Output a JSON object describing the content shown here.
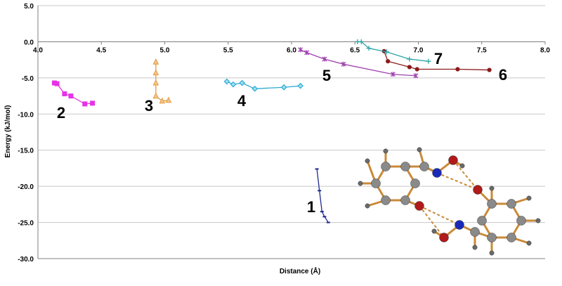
{
  "chart_data": {
    "type": "scatter",
    "title": "",
    "xlabel": "Distance (Å)",
    "ylabel": "Energy (kJ/mol)",
    "xlim": [
      4.0,
      8.0
    ],
    "ylim": [
      -30.0,
      5.0
    ],
    "x_ticks": [
      "4.0",
      "4.5",
      "5.0",
      "5.5",
      "6.0",
      "6.5",
      "7.0",
      "7.5",
      "8.0"
    ],
    "y_ticks": [
      "5.0",
      "0.0",
      "-5.0",
      "-10.0",
      "-15.0",
      "-20.0",
      "-25.0",
      "-30.0"
    ],
    "grid": "horizontal major only",
    "legend": "none",
    "series": [
      {
        "name": "1",
        "color": "#1f2a8f",
        "marker": "dash",
        "x": [
          6.2,
          6.22,
          6.24,
          6.26,
          6.29
        ],
        "y": [
          -17.6,
          -20.6,
          -23.5,
          -24.2,
          -25.0
        ]
      },
      {
        "name": "2",
        "color": "#e633e6",
        "marker": "square",
        "x": [
          4.13,
          4.15,
          4.21,
          4.26,
          4.37,
          4.43
        ],
        "y": [
          -5.7,
          -5.8,
          -7.2,
          -7.5,
          -8.6,
          -8.5
        ]
      },
      {
        "name": "3",
        "color": "#e69a3c",
        "marker": "triangle",
        "x": [
          4.93,
          4.93,
          4.93,
          4.93,
          4.98,
          5.03
        ],
        "y": [
          -2.8,
          -4.3,
          -5.7,
          -7.5,
          -8.2,
          -8.1
        ]
      },
      {
        "name": "4",
        "color": "#2eaad6",
        "marker": "diamond",
        "x": [
          5.49,
          5.54,
          5.61,
          5.71,
          5.94,
          6.07
        ],
        "y": [
          -5.5,
          -5.9,
          -5.7,
          -6.5,
          -6.3,
          -6.1
        ]
      },
      {
        "name": "5",
        "color": "#a040b0",
        "marker": "asterisk",
        "x": [
          6.07,
          6.12,
          6.26,
          6.41,
          6.8,
          6.98
        ],
        "y": [
          -1.1,
          -1.5,
          -2.4,
          -3.1,
          -4.5,
          -4.7
        ]
      },
      {
        "name": "6",
        "color": "#8b1a1a",
        "marker": "circle",
        "x": [
          6.73,
          6.76,
          6.93,
          6.99,
          7.31,
          7.56
        ],
        "y": [
          -1.3,
          -2.7,
          -3.5,
          -3.8,
          -3.8,
          -3.9
        ]
      },
      {
        "name": "7",
        "color": "#2aa3a8",
        "marker": "plus",
        "x": [
          6.52,
          6.55,
          6.61,
          6.75,
          6.93,
          7.08
        ],
        "y": [
          0.0,
          0.0,
          -0.9,
          -1.4,
          -2.4,
          -2.7
        ]
      }
    ],
    "annotations": [
      "1",
      "2",
      "3",
      "4",
      "5",
      "6",
      "7"
    ]
  },
  "molecule": {
    "description_icon": "molecule-structure-icon",
    "bond_color": "#c98a3a",
    "carbon_color": "#8a8a8a",
    "nitrogen_color": "#1a2ab8",
    "oxygen_color": "#b01a1a",
    "hydrogen_color": "#6a6a6a"
  }
}
